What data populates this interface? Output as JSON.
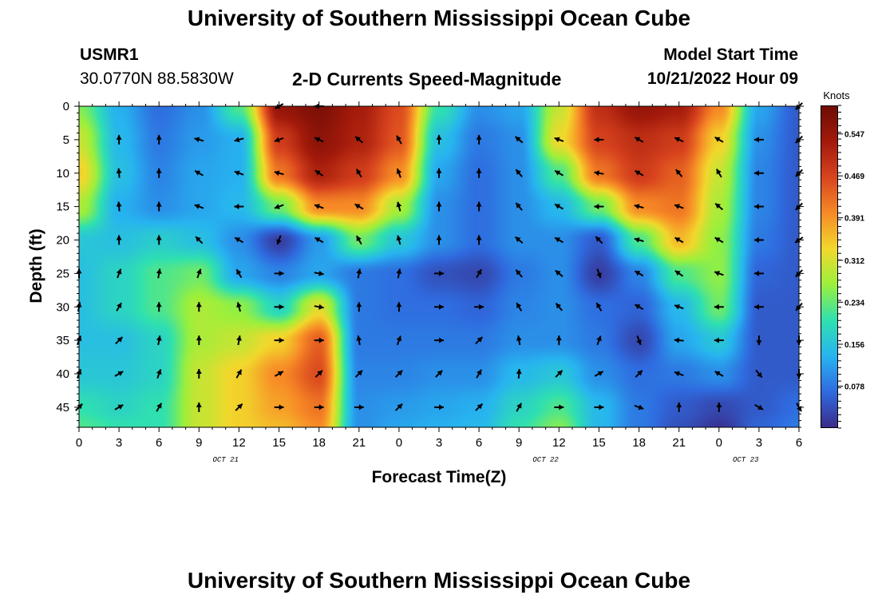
{
  "header": {
    "title": "University of Southern Mississippi Ocean Cube",
    "station": "USMR1",
    "coords": "30.0770N  88.5830W",
    "subtitle": "2-D Currents Speed-Magnitude",
    "model_start_label": "Model Start Time",
    "model_start_value": "10/21/2022 Hour 09"
  },
  "footer": {
    "title": "University of Southern Mississippi Ocean Cube"
  },
  "colors": {
    "scale": [
      "#3a2c8a",
      "#2f6bdf",
      "#27b4f0",
      "#2fe0b0",
      "#9af03c",
      "#f2d82c",
      "#f78a26",
      "#d8441e",
      "#a31a0b",
      "#6e0c05"
    ]
  },
  "chart_data": {
    "type": "heatmap",
    "title": "2-D Currents Speed-Magnitude",
    "xlabel": "Forecast Time(Z)",
    "ylabel": "Depth (ft)",
    "x_ticks": [
      "0",
      "3",
      "6",
      "9",
      "12",
      "15",
      "18",
      "21",
      "0",
      "3",
      "6",
      "9",
      "12",
      "15",
      "18",
      "21",
      "0",
      "3",
      "6"
    ],
    "day_labels": [
      {
        "label": "OCT 21",
        "tick_index": 11
      },
      {
        "label": "OCT 22",
        "tick_index": 35
      },
      {
        "label": "OCT 23",
        "tick_index": 50
      }
    ],
    "y_ticks": [
      0,
      5,
      10,
      15,
      20,
      25,
      30,
      35,
      40,
      45
    ],
    "ylim": [
      0,
      48
    ],
    "xlim_hours": [
      0,
      54
    ],
    "colorbar": {
      "label": "Knots",
      "ticks": [
        "0.547",
        "0.469",
        "0.391",
        "0.312",
        "0.234",
        "0.156",
        "0.078"
      ],
      "range": [
        0,
        0.6
      ]
    },
    "speed_field": {
      "hours": [
        0,
        3,
        6,
        9,
        12,
        15,
        18,
        21,
        24,
        27,
        30,
        33,
        36,
        39,
        42,
        45,
        48,
        51,
        54
      ],
      "depths": [
        0,
        5,
        10,
        15,
        20,
        25,
        30,
        35,
        40,
        45,
        48
      ],
      "values": [
        [
          0.25,
          0.13,
          0.07,
          0.1,
          0.22,
          0.55,
          0.58,
          0.53,
          0.46,
          0.2,
          0.1,
          0.12,
          0.3,
          0.5,
          0.55,
          0.53,
          0.4,
          0.12,
          0.05
        ],
        [
          0.3,
          0.14,
          0.08,
          0.11,
          0.13,
          0.48,
          0.56,
          0.52,
          0.45,
          0.15,
          0.08,
          0.1,
          0.33,
          0.47,
          0.5,
          0.48,
          0.34,
          0.1,
          0.05
        ],
        [
          0.34,
          0.15,
          0.09,
          0.12,
          0.13,
          0.42,
          0.52,
          0.48,
          0.4,
          0.12,
          0.07,
          0.1,
          0.22,
          0.42,
          0.48,
          0.44,
          0.3,
          0.09,
          0.05
        ],
        [
          0.28,
          0.13,
          0.1,
          0.12,
          0.14,
          0.24,
          0.4,
          0.4,
          0.28,
          0.1,
          0.07,
          0.1,
          0.14,
          0.24,
          0.4,
          0.42,
          0.28,
          0.09,
          0.05
        ],
        [
          0.16,
          0.15,
          0.17,
          0.15,
          0.1,
          0.02,
          0.11,
          0.24,
          0.16,
          0.1,
          0.07,
          0.1,
          0.1,
          0.05,
          0.22,
          0.36,
          0.26,
          0.08,
          0.05
        ],
        [
          0.15,
          0.18,
          0.22,
          0.24,
          0.12,
          0.09,
          0.12,
          0.08,
          0.07,
          0.04,
          0.03,
          0.08,
          0.1,
          0.02,
          0.09,
          0.22,
          0.26,
          0.06,
          0.05
        ],
        [
          0.15,
          0.18,
          0.22,
          0.28,
          0.26,
          0.18,
          0.32,
          0.08,
          0.07,
          0.07,
          0.06,
          0.09,
          0.1,
          0.07,
          0.06,
          0.14,
          0.24,
          0.05,
          0.05
        ],
        [
          0.15,
          0.15,
          0.18,
          0.28,
          0.3,
          0.34,
          0.44,
          0.08,
          0.08,
          0.08,
          0.08,
          0.1,
          0.1,
          0.08,
          0.03,
          0.12,
          0.16,
          0.05,
          0.05
        ],
        [
          0.16,
          0.16,
          0.18,
          0.3,
          0.34,
          0.4,
          0.46,
          0.09,
          0.09,
          0.1,
          0.1,
          0.14,
          0.16,
          0.1,
          0.07,
          0.08,
          0.1,
          0.05,
          0.05
        ],
        [
          0.2,
          0.18,
          0.2,
          0.3,
          0.34,
          0.38,
          0.42,
          0.1,
          0.11,
          0.12,
          0.13,
          0.18,
          0.22,
          0.14,
          0.08,
          0.05,
          0.03,
          0.05,
          0.07
        ],
        [
          0.22,
          0.2,
          0.2,
          0.3,
          0.34,
          0.36,
          0.4,
          0.1,
          0.12,
          0.13,
          0.14,
          0.2,
          0.25,
          0.14,
          0.08,
          0.04,
          0.01,
          0.06,
          0.08
        ]
      ]
    },
    "vectors": {
      "hours": [
        0,
        3,
        6,
        9,
        12,
        15,
        18,
        21,
        24,
        27,
        30,
        33,
        36,
        39,
        42,
        45,
        48,
        51,
        54
      ],
      "depths": [
        0,
        5,
        10,
        15,
        20,
        25,
        30,
        35,
        40,
        45
      ],
      "angles_deg": [
        [
          null,
          null,
          null,
          null,
          null,
          240,
          270,
          null,
          null,
          null,
          null,
          null,
          null,
          null,
          null,
          null,
          null,
          null,
          225
        ],
        [
          null,
          0,
          0,
          285,
          255,
          250,
          295,
          310,
          330,
          0,
          0,
          310,
          290,
          270,
          300,
          295,
          300,
          270,
          225
        ],
        [
          null,
          355,
          0,
          300,
          290,
          285,
          305,
          330,
          340,
          0,
          0,
          320,
          300,
          280,
          300,
          320,
          330,
          270,
          225
        ],
        [
          null,
          355,
          0,
          290,
          270,
          250,
          290,
          300,
          345,
          0,
          0,
          320,
          300,
          270,
          285,
          290,
          310,
          270,
          225
        ],
        [
          null,
          0,
          0,
          315,
          300,
          200,
          300,
          330,
          345,
          0,
          0,
          310,
          300,
          315,
          285,
          300,
          300,
          270,
          235
        ],
        [
          0,
          20,
          10,
          20,
          330,
          90,
          100,
          10,
          10,
          90,
          30,
          320,
          310,
          160,
          300,
          305,
          290,
          270,
          225
        ],
        [
          10,
          30,
          0,
          0,
          345,
          90,
          100,
          0,
          0,
          90,
          90,
          330,
          320,
          330,
          300,
          290,
          270,
          270,
          220
        ],
        [
          20,
          45,
          10,
          0,
          10,
          90,
          90,
          350,
          20,
          90,
          45,
          350,
          0,
          20,
          160,
          275,
          270,
          180,
          180
        ],
        [
          20,
          60,
          20,
          0,
          30,
          60,
          45,
          45,
          45,
          45,
          30,
          5,
          45,
          60,
          45,
          290,
          300,
          140,
          180
        ],
        [
          45,
          60,
          30,
          0,
          45,
          90,
          90,
          90,
          45,
          90,
          45,
          30,
          90,
          90,
          110,
          0,
          0,
          120,
          150
        ]
      ]
    }
  }
}
